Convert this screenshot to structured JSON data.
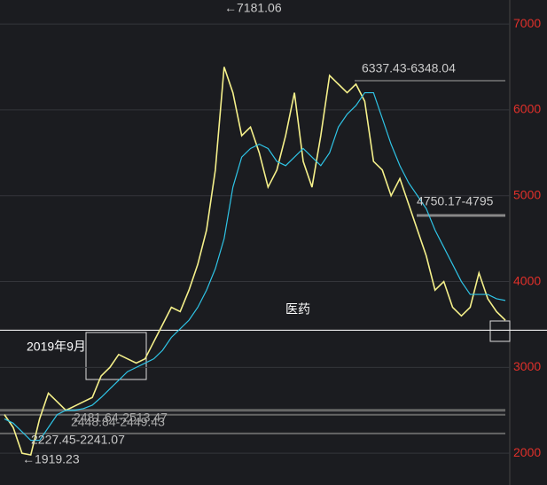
{
  "chart_data": {
    "type": "line",
    "categories": [
      null,
      null,
      null,
      null,
      null,
      null,
      null,
      null,
      null,
      null,
      null,
      null,
      null,
      null,
      null,
      null,
      null,
      null,
      null,
      null,
      null,
      null,
      null,
      null,
      null,
      null,
      null,
      null,
      null,
      null,
      null,
      null,
      null,
      null,
      null,
      null,
      null,
      null,
      null,
      null,
      null,
      null,
      null,
      null,
      null,
      null,
      null,
      null,
      null,
      null,
      null,
      null,
      null,
      null,
      null,
      null,
      null,
      null
    ],
    "series": [
      {
        "color": "#f5f08a",
        "values": [
          2450,
          2300,
          2000,
          1980,
          2400,
          2700,
          2600,
          2500,
          2550,
          2600,
          2650,
          2900,
          3000,
          3150,
          3100,
          3050,
          3100,
          3300,
          3500,
          3700,
          3650,
          3900,
          4200,
          4600,
          5300,
          6500,
          6200,
          5700,
          5800,
          5500,
          5100,
          5300,
          5700,
          6200,
          5400,
          5100,
          5700,
          6400,
          6300,
          6200,
          6300,
          6100,
          5400,
          5300,
          5000,
          5200,
          4900,
          4600,
          4300,
          3900,
          4000,
          3700,
          3600,
          3700,
          4100,
          3800,
          3650,
          3550
        ]
      },
      {
        "color": "#2fc4e6",
        "values": [
          2400,
          2350,
          2250,
          2150,
          2150,
          2300,
          2450,
          2500,
          2500,
          2520,
          2560,
          2650,
          2750,
          2850,
          2950,
          3000,
          3050,
          3100,
          3200,
          3350,
          3450,
          3550,
          3700,
          3900,
          4150,
          4500,
          5100,
          5450,
          5550,
          5600,
          5550,
          5400,
          5350,
          5450,
          5550,
          5450,
          5350,
          5500,
          5800,
          5950,
          6050,
          6200,
          6200,
          5900,
          5600,
          5350,
          5150,
          5000,
          4850,
          4600,
          4400,
          4200,
          4000,
          3850,
          3850,
          3850,
          3800,
          3780
        ]
      }
    ],
    "ylim": [
      1630,
      7280
    ],
    "yticks": [
      2000,
      3000,
      4000,
      5000,
      6000,
      7000
    ],
    "grid": true,
    "levels": [
      6340,
      4770,
      2500,
      2449,
      2230,
      3433
    ],
    "annotations": [
      "←7181.06",
      "6337.43-6348.04",
      "4750.17-4795",
      "2481.64-2513.47",
      "2448.84-2449.43",
      "2227.45-2241.07",
      "←1919.23",
      "2019年9月",
      "医药"
    ]
  }
}
